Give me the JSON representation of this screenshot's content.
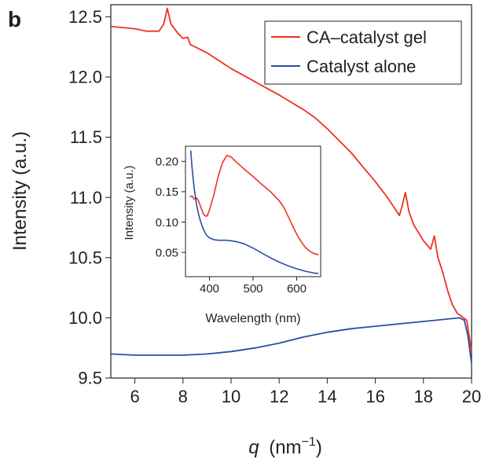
{
  "panel_label": "b",
  "chart_data": [
    {
      "type": "line",
      "xlabel_var": "q",
      "xlabel_unit_base": "(nm",
      "xlabel_unit_exp": "−1",
      "xlabel_unit_close": ")",
      "ylabel": "Intensity (a.u.)",
      "xlim": [
        5,
        20
      ],
      "ylim": [
        9.5,
        12.6
      ],
      "xticks": [
        6,
        8,
        10,
        12,
        14,
        16,
        18,
        20
      ],
      "yticks": [
        9.5,
        10.0,
        10.5,
        11.0,
        11.5,
        12.0,
        12.5
      ],
      "ytick_labels": [
        "9.5",
        "10.0",
        "10.5",
        "11.0",
        "11.5",
        "12.0",
        "12.5"
      ],
      "legend_position": "top-right",
      "series": [
        {
          "name": "CA–catalyst gel",
          "color": "#ee3124",
          "x": [
            5.0,
            5.5,
            6.0,
            6.5,
            7.0,
            7.2,
            7.35,
            7.5,
            7.8,
            8.0,
            8.2,
            8.3,
            8.5,
            9.0,
            10.0,
            11.0,
            12.0,
            13.0,
            13.5,
            14.0,
            14.5,
            15.0,
            15.5,
            16.0,
            16.5,
            17.0,
            17.1,
            17.25,
            17.4,
            17.6,
            18.0,
            18.3,
            18.45,
            18.6,
            18.8,
            19.0,
            19.2,
            19.4,
            19.6,
            19.8,
            20.0
          ],
          "y": [
            12.42,
            12.41,
            12.4,
            12.38,
            12.38,
            12.44,
            12.57,
            12.44,
            12.36,
            12.32,
            12.33,
            12.27,
            12.25,
            12.2,
            12.07,
            11.96,
            11.85,
            11.73,
            11.66,
            11.57,
            11.47,
            11.37,
            11.25,
            11.13,
            11.0,
            10.85,
            10.92,
            11.04,
            10.88,
            10.77,
            10.64,
            10.57,
            10.68,
            10.5,
            10.38,
            10.23,
            10.11,
            10.04,
            10.01,
            9.98,
            9.72
          ]
        },
        {
          "name": "Catalyst alone",
          "color": "#2b4fa1",
          "x": [
            5.0,
            6.0,
            7.0,
            8.0,
            9.0,
            10.0,
            11.0,
            12.0,
            13.0,
            14.0,
            15.0,
            16.0,
            17.0,
            17.5,
            18.0,
            18.5,
            19.0,
            19.5,
            19.7,
            19.85,
            20.0
          ],
          "y": [
            9.7,
            9.69,
            9.69,
            9.69,
            9.7,
            9.72,
            9.75,
            9.79,
            9.84,
            9.88,
            9.91,
            9.93,
            9.95,
            9.96,
            9.97,
            9.98,
            9.99,
            10.0,
            9.98,
            9.85,
            9.62
          ]
        }
      ]
    },
    {
      "type": "line",
      "xlabel": "Wavelength (nm)",
      "ylabel": "Intensity (a.u.)",
      "xlim": [
        345,
        655
      ],
      "ylim": [
        0.01,
        0.225
      ],
      "xticks": [
        400,
        500,
        600
      ],
      "yticks": [
        0.05,
        0.1,
        0.15,
        0.2
      ],
      "ytick_labels": [
        "0.05",
        "0.10",
        "0.15",
        "0.20"
      ],
      "series": [
        {
          "color": "#ee3124",
          "x": [
            355,
            360,
            365,
            370,
            375,
            380,
            385,
            390,
            395,
            400,
            410,
            420,
            430,
            440,
            450,
            460,
            480,
            500,
            520,
            540,
            560,
            570,
            580,
            590,
            600,
            610,
            620,
            630,
            640,
            650
          ],
          "y": [
            0.142,
            0.143,
            0.138,
            0.14,
            0.135,
            0.125,
            0.115,
            0.11,
            0.11,
            0.12,
            0.145,
            0.175,
            0.198,
            0.21,
            0.207,
            0.2,
            0.187,
            0.175,
            0.162,
            0.15,
            0.135,
            0.125,
            0.11,
            0.095,
            0.08,
            0.068,
            0.058,
            0.052,
            0.048,
            0.046
          ]
        },
        {
          "color": "#2b4fa1",
          "x": [
            357,
            360,
            365,
            370,
            375,
            380,
            385,
            390,
            395,
            400,
            410,
            420,
            440,
            460,
            480,
            500,
            520,
            540,
            560,
            580,
            600,
            620,
            640,
            650
          ],
          "y": [
            0.218,
            0.19,
            0.155,
            0.13,
            0.113,
            0.1,
            0.09,
            0.082,
            0.077,
            0.074,
            0.071,
            0.07,
            0.07,
            0.068,
            0.064,
            0.057,
            0.049,
            0.041,
            0.034,
            0.028,
            0.023,
            0.019,
            0.016,
            0.015
          ]
        }
      ]
    }
  ]
}
